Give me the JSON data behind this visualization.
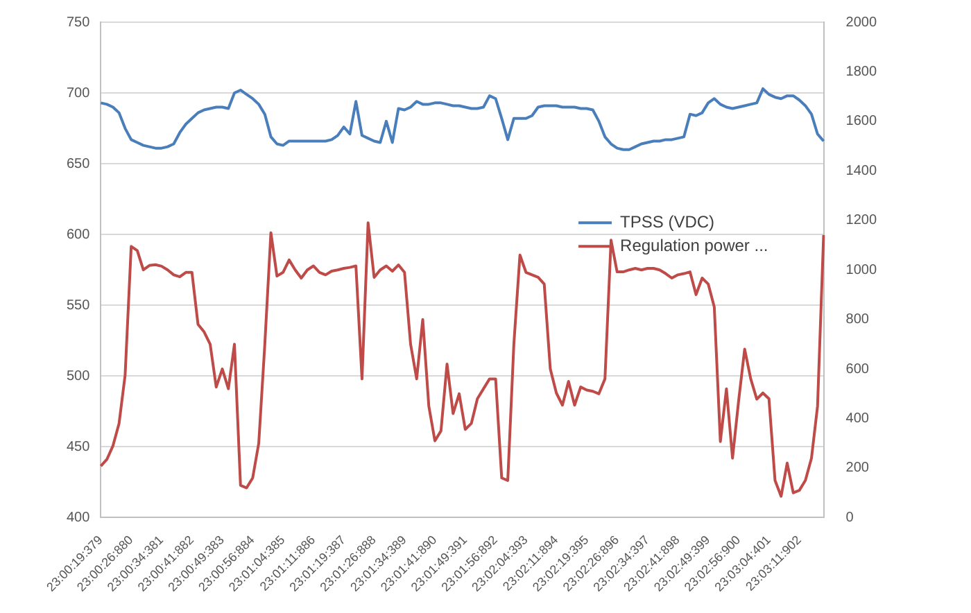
{
  "chart_data": {
    "type": "line",
    "categories": [
      "23:00:19:379",
      null,
      null,
      null,
      null,
      "23:00:26:880",
      null,
      null,
      null,
      null,
      "23:00:34:381",
      null,
      null,
      null,
      null,
      "23:00:41:882",
      null,
      null,
      null,
      null,
      "23:00:49:383",
      null,
      null,
      null,
      null,
      "23:00:56:884",
      null,
      null,
      null,
      null,
      "23:01:04:385",
      null,
      null,
      null,
      null,
      "23:01:11:886",
      null,
      null,
      null,
      null,
      "23:01:19:387",
      null,
      null,
      null,
      null,
      "23:01:26:888",
      null,
      null,
      null,
      null,
      "23:01:34:389",
      null,
      null,
      null,
      null,
      "23:01:41:890",
      null,
      null,
      null,
      null,
      "23:01:49:391",
      null,
      null,
      null,
      null,
      "23:01:56:892",
      null,
      null,
      null,
      null,
      "23:02:04:393",
      null,
      null,
      null,
      null,
      "23:02:11:894",
      null,
      null,
      null,
      null,
      "23:02:19:395",
      null,
      null,
      null,
      null,
      "23:02:26:896",
      null,
      null,
      null,
      null,
      "23:02:34:397",
      null,
      null,
      null,
      null,
      "23:02:41:898",
      null,
      null,
      null,
      null,
      "23:02:49:399",
      null,
      null,
      null,
      null,
      "23:02:56:900",
      null,
      null,
      null,
      null,
      "23:03:04:401",
      null,
      null,
      null,
      null,
      "23:03:11:902",
      null,
      null,
      null,
      null
    ],
    "series": [
      {
        "name": "TPSS (VDC)",
        "color": "#4a7ebb",
        "values": [
          693,
          692,
          690,
          686,
          675,
          667,
          665,
          663,
          662,
          661,
          661,
          662,
          664,
          672,
          678,
          682,
          686,
          688,
          689,
          690,
          690,
          689,
          700,
          702,
          699,
          696,
          692,
          685,
          669,
          664,
          663,
          666,
          666,
          666,
          666,
          666,
          666,
          666,
          667,
          670,
          676,
          671,
          694,
          670,
          668,
          666,
          665,
          680,
          665,
          689,
          688,
          690,
          694,
          692,
          692,
          693,
          693,
          692,
          691,
          691,
          690,
          689,
          689,
          690,
          698,
          696,
          682,
          667,
          682,
          682,
          682,
          684,
          690,
          691,
          691,
          691,
          690,
          690,
          690,
          689,
          689,
          688,
          680,
          669,
          664,
          661,
          660,
          660,
          662,
          664,
          665,
          666,
          666,
          667,
          667,
          668,
          669,
          685,
          684,
          686,
          693,
          696,
          692,
          690,
          689,
          690,
          691,
          692,
          693,
          703,
          699,
          697,
          696,
          698,
          698,
          695,
          691,
          685,
          671,
          666
        ]
      },
      {
        "name": "Regulation power ...",
        "color": "#be4b48",
        "axis": "y2",
        "values": [
          208,
          235,
          290,
          380,
          575,
          1095,
          1078,
          1000,
          1018,
          1021,
          1015,
          1000,
          980,
          972,
          990,
          990,
          780,
          750,
          700,
          527,
          600,
          520,
          700,
          130,
          120,
          160,
          300,
          700,
          1150,
          975,
          990,
          1040,
          1000,
          967,
          1000,
          1016,
          990,
          980,
          995,
          1000,
          1006,
          1010,
          1016,
          560,
          1190,
          970,
          1000,
          1016,
          995,
          1020,
          990,
          700,
          560,
          800,
          450,
          310,
          350,
          620,
          420,
          500,
          356,
          380,
          480,
          520,
          560,
          560,
          160,
          150,
          700,
          1060,
          990,
          980,
          970,
          943,
          600,
          503,
          454,
          550,
          454,
          527,
          515,
          510,
          500,
          560,
          1120,
          992,
          992,
          1000,
          1006,
          1000,
          1006,
          1006,
          1000,
          985,
          967,
          980,
          985,
          992,
          900,
          967,
          943,
          850,
          307,
          520,
          240,
          470,
          680,
          560,
          478,
          503,
          480,
          150,
          86,
          220,
          100,
          110,
          150,
          240,
          450,
          1141
        ]
      }
    ],
    "ylim": [
      400,
      750
    ],
    "yticks": [
      400,
      450,
      500,
      550,
      600,
      650,
      700,
      750
    ],
    "y2lim": [
      0,
      2000
    ],
    "y2ticks": [
      0,
      200,
      400,
      600,
      800,
      1000,
      1200,
      1400,
      1600,
      1800,
      2000
    ],
    "grid": "y",
    "legend": "right",
    "marker": "none",
    "line_style": "solid"
  }
}
